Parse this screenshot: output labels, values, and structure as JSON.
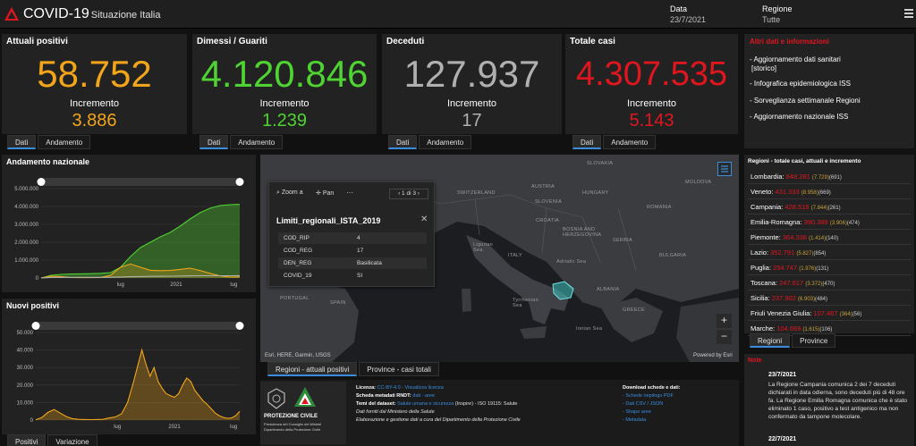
{
  "header": {
    "title": "COVID-19",
    "subtitle": "Situazione Italia",
    "date_label": "Data",
    "date_value": "23/7/2021",
    "region_label": "Regione",
    "region_value": "Tutte"
  },
  "kpis": [
    {
      "title": "Attuali positivi",
      "value": "58.752",
      "inc_label": "Incremento",
      "inc_value": "3.886",
      "color": "#f2a51a"
    },
    {
      "title": "Dimessi / Guariti",
      "value": "4.120.846",
      "inc_label": "Incremento",
      "inc_value": "1.239",
      "color": "#4fd332"
    },
    {
      "title": "Deceduti",
      "value": "127.937",
      "inc_label": "Incremento",
      "inc_value": "17",
      "color": "#b0b0b0"
    },
    {
      "title": "Totale casi",
      "value": "4.307.535",
      "inc_label": "Incremento",
      "inc_value": "5.143",
      "color": "#e0161f"
    }
  ],
  "kpi_tabs": {
    "dati": "Dati",
    "andamento": "Andamento"
  },
  "info": {
    "title": "Altri dati e informazioni",
    "items": [
      "- Aggiornamento dati sanitari",
      "[storico]",
      "- Infografica epidemiologica ISS",
      "- Sorveglianza settimanale Regioni",
      "- Aggiornamento nazionale ISS"
    ]
  },
  "chart_data": [
    {
      "type": "area",
      "title": "Andamento nazionale",
      "y_ticks": [
        "5.000.000",
        "4.000.000",
        "3.000.000",
        "2.000.000",
        "1.000.000",
        "0"
      ],
      "x_ticks": [
        "lug",
        "2021",
        "lug"
      ],
      "ylim": [
        0,
        5000000
      ],
      "x": [
        0,
        0.05,
        0.1,
        0.15,
        0.2,
        0.25,
        0.3,
        0.35,
        0.4,
        0.45,
        0.5,
        0.55,
        0.6,
        0.65,
        0.7,
        0.75,
        0.8,
        0.85,
        0.9,
        0.95,
        1.0
      ],
      "series": [
        {
          "color": "#4fd332",
          "values": [
            0,
            150000,
            200000,
            220000,
            230000,
            240000,
            260000,
            300000,
            600000,
            1200000,
            1700000,
            2000000,
            2300000,
            2550000,
            2900000,
            3300000,
            3650000,
            3900000,
            4050000,
            4100000,
            4120000
          ]
        },
        {
          "color": "#f2a51a",
          "values": [
            0,
            100000,
            80000,
            25000,
            20000,
            20000,
            30000,
            150000,
            600000,
            780000,
            600000,
            430000,
            410000,
            420000,
            480000,
            550000,
            420000,
            260000,
            120000,
            50000,
            58000
          ]
        },
        {
          "color": "#b0b0b0",
          "values": [
            0,
            30000,
            34000,
            35000,
            35000,
            35000,
            36000,
            40000,
            55000,
            70000,
            80000,
            90000,
            95000,
            100000,
            110000,
            118000,
            124000,
            126000,
            127000,
            127500,
            128000
          ]
        }
      ]
    },
    {
      "type": "area",
      "title": "Nuovi positivi",
      "y_ticks": [
        "50.000",
        "40.000",
        "30.000",
        "20.000",
        "10.000",
        "0"
      ],
      "x_ticks": [
        "lug",
        "2021",
        "lug"
      ],
      "ylim": [
        0,
        50000
      ],
      "x": [
        0,
        0.03,
        0.06,
        0.09,
        0.12,
        0.15,
        0.18,
        0.21,
        0.24,
        0.27,
        0.3,
        0.33,
        0.36,
        0.39,
        0.42,
        0.45,
        0.48,
        0.5,
        0.52,
        0.54,
        0.56,
        0.58,
        0.6,
        0.62,
        0.64,
        0.66,
        0.68,
        0.7,
        0.72,
        0.74,
        0.76,
        0.78,
        0.8,
        0.82,
        0.84,
        0.86,
        0.88,
        0.9,
        0.92,
        0.94,
        0.96,
        0.98,
        1.0
      ],
      "series": [
        {
          "color": "#f2a51a",
          "values": [
            200,
            1500,
            4500,
            6000,
            4000,
            2000,
            800,
            400,
            300,
            250,
            300,
            400,
            1200,
            1800,
            3500,
            10000,
            22000,
            31000,
            40000,
            32000,
            25000,
            30000,
            22000,
            18000,
            15000,
            14000,
            13000,
            15000,
            20000,
            24000,
            22000,
            17000,
            14000,
            11000,
            9000,
            6500,
            4000,
            2500,
            1500,
            1000,
            1200,
            2500,
            5000
          ]
        }
      ]
    }
  ],
  "chart_tabs": {
    "positivi": "Positivi",
    "variazione": "Variazione"
  },
  "map": {
    "attribution": "Esri, HERE, Garmin, USGS",
    "powered": "Powered by Esri",
    "labels": [
      "SLOVAKIA",
      "AUSTRIA",
      "HUNGARY",
      "MOLDOVA",
      "SWITZERLAND",
      "SLOVENIA",
      "CROATIA",
      "ROMANIA",
      "BOSNIA AND HERZEGOVINA",
      "SERBIA",
      "Ligurian Sea",
      "ITALY",
      "Adriatic Sea",
      "BULGARIA",
      "Tyrrhenian Sea",
      "ALBANIA",
      "SPAIN",
      "PORTUGAL",
      "GREECE",
      "Ionian Sea"
    ],
    "popup": {
      "zoom": "Zoom a",
      "pan": "Pan",
      "more": "···",
      "pager": "1 di 3",
      "title": "Limiti_regionali_ISTA_2019",
      "rows": [
        {
          "k": "COD_RIP",
          "v": "4"
        },
        {
          "k": "COD_REG",
          "v": "17"
        },
        {
          "k": "DEN_REG",
          "v": "Basilicata"
        },
        {
          "k": "COVID_19",
          "v": "SI"
        }
      ]
    },
    "tabs": {
      "regioni": "Regioni - attuali positivi",
      "province": "Province - casi totali"
    }
  },
  "regions": {
    "title": "Regioni - totale casi, attuali e incremento",
    "rows": [
      {
        "name": "Lombardia",
        "total": "848.281",
        "a": "(7.729)",
        "b": "(691)"
      },
      {
        "name": "Veneto",
        "total": "431.333",
        "a": "(8.958)",
        "b": "(669)"
      },
      {
        "name": "Campania",
        "total": "428.519",
        "a": "(7.844)",
        "b": "(261)"
      },
      {
        "name": "Emilia-Romagna",
        "total": "390.389",
        "a": "(3.906)",
        "b": "(474)"
      },
      {
        "name": "Piemonte",
        "total": "364.338",
        "a": "(1.414)",
        "b": "(140)"
      },
      {
        "name": "Lazio",
        "total": "352.791",
        "a": "(5.827)",
        "b": "(854)"
      },
      {
        "name": "Puglia",
        "total": "254.747",
        "a": "(1.976)",
        "b": "(131)"
      },
      {
        "name": "Toscana",
        "total": "247.617",
        "a": "(3.372)",
        "b": "(470)"
      },
      {
        "name": "Sicilia",
        "total": "237.902",
        "a": "(6.903)",
        "b": "(484)"
      },
      {
        "name": "Friuli Venezia Giulia",
        "total": "107.467",
        "a": "(364)",
        "b": "(56)"
      },
      {
        "name": "Marche",
        "total": "104.669",
        "a": "(1.615)",
        "b": "(106)"
      }
    ],
    "tabs": {
      "regioni": "Regioni",
      "province": "Province"
    }
  },
  "notes": {
    "title": "Note",
    "entries": [
      {
        "date": "23/7/2021",
        "text": [
          "La Regione Campania comunica 2 dei 7 deceduti",
          "dichiarati in data odierna, sono deceduti più di 48 ore",
          "fa. La Regione Emilia Romagna comunica che è stato",
          "eliminato 1 caso, positivo a test antigenico ma non",
          "confermato da tampone molecolare."
        ]
      },
      {
        "date": "22/7/2021",
        "text": [
          ""
        ]
      }
    ]
  },
  "footer": {
    "pc_title": "PROTEZIONE CIVILE",
    "pc_sub1": "Presidenza del Consiglio dei Ministri",
    "pc_sub2": "Dipartimento della Protezione Civile",
    "licenza_label": "Licenza:",
    "licenza_value": "CC-BY-4.0",
    "licenza_link": "- Visualizza licenza",
    "metadati_label": "Scheda metadati RNDT:",
    "metadati_link": "dati - aree",
    "temi_label": "Temi del dataset:",
    "temi_link": "Salute umana e sicurezza",
    "temi_rest": "(Inspire) - ISO 19115: Salute",
    "fonte": "Dati forniti dal Ministero della Salute",
    "elaborazione": "Elaborazione e gestione dati a cura del Dipartimento della Protezione Civile",
    "download_title": "Download schede e dati:",
    "download_links": [
      "- Schede riepilogo PDF",
      "- Dati CSV / JSON",
      "- Shape aree",
      "- Metadata"
    ]
  }
}
